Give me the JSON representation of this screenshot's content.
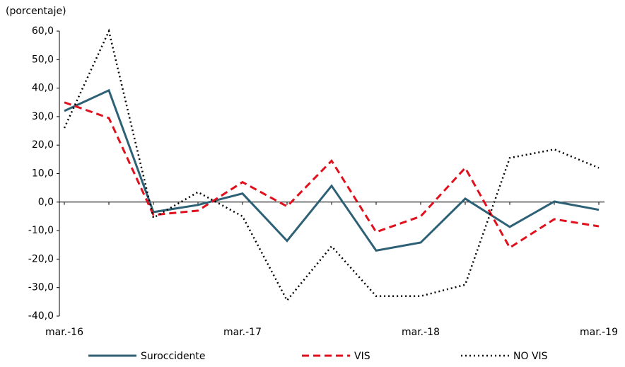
{
  "chart_data": {
    "type": "line",
    "y_label": "(porcentaje)",
    "categories": [
      "mar.-16",
      null,
      null,
      null,
      "mar.-17",
      null,
      null,
      null,
      "mar.-18",
      null,
      null,
      null,
      "mar.-19"
    ],
    "series": [
      {
        "name": "Suroccidente",
        "color": "#2e6176",
        "dash": "solid",
        "values": [
          32,
          39.2,
          -3.5,
          -1,
          3,
          -13.6,
          5.7,
          -17,
          -14.2,
          1.2,
          -8.7,
          0.2,
          -2.7
        ]
      },
      {
        "name": "VIS",
        "color": "#e0101d",
        "dash": "dashed",
        "values": [
          35,
          29.5,
          -4.5,
          -3,
          7,
          -1.5,
          14.5,
          -10.5,
          -5,
          12,
          -16,
          -6,
          -8.5
        ]
      },
      {
        "name": "NO VIS",
        "color": "#000000",
        "dash": "dotted",
        "values": [
          26,
          60,
          -5.5,
          3.5,
          -5,
          -34.5,
          -15.5,
          -33,
          -33,
          -29,
          15.5,
          18.5,
          12
        ]
      }
    ],
    "ylim": [
      -40,
      60
    ],
    "yticks": [
      {
        "value": -40,
        "label": "-40,0"
      },
      {
        "value": -30,
        "label": "-30,0"
      },
      {
        "value": -20,
        "label": "-20,0"
      },
      {
        "value": -10,
        "label": "-10,0"
      },
      {
        "value": 0,
        "label": "0,0"
      },
      {
        "value": 10,
        "label": "10,0"
      },
      {
        "value": 20,
        "label": "20,0"
      },
      {
        "value": 30,
        "label": "30,0"
      },
      {
        "value": 40,
        "label": "40,0"
      },
      {
        "value": 50,
        "label": "50,0"
      },
      {
        "value": 60,
        "label": "60,0"
      }
    ],
    "legend": "bottom"
  }
}
